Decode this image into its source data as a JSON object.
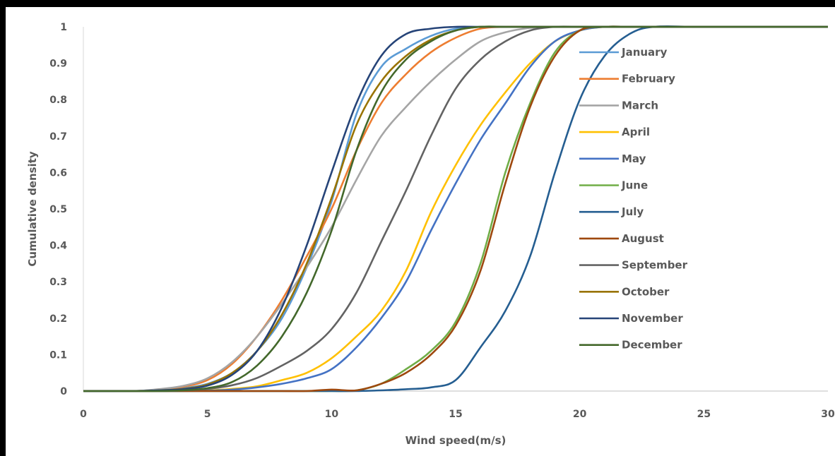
{
  "chart_data": {
    "type": "line",
    "title": "",
    "xlabel": "Wind speed(m/s)",
    "ylabel": "Cumulative density",
    "xlim": [
      0,
      30
    ],
    "ylim": [
      0,
      1
    ],
    "x_ticks": [
      0,
      5,
      10,
      15,
      20,
      25,
      30
    ],
    "y_ticks": [
      0,
      0.1,
      0.2,
      0.3,
      0.4,
      0.5,
      0.6,
      0.7,
      0.8,
      0.9,
      1
    ],
    "y_tick_labels": [
      "0",
      "0.1",
      "0.2",
      "0.3",
      "0.4",
      "0.5",
      "0.6",
      "0.7",
      "0.8",
      "0.9",
      "1"
    ],
    "grid": false,
    "legend_position": "right",
    "x": [
      0,
      2,
      3,
      4,
      5,
      6,
      7,
      8,
      9,
      10,
      11,
      12,
      13,
      14,
      15,
      16,
      17,
      18,
      19,
      20,
      21,
      22,
      23,
      25,
      30
    ],
    "series": [
      {
        "name": "January",
        "color": "#5B9BD5",
        "values": [
          0,
          0,
          0.003,
          0.008,
          0.02,
          0.05,
          0.11,
          0.2,
          0.34,
          0.52,
          0.76,
          0.89,
          0.94,
          0.975,
          0.995,
          1,
          1,
          1,
          1,
          1,
          1,
          1,
          1,
          1,
          1
        ]
      },
      {
        "name": "February",
        "color": "#ED7D31",
        "values": [
          0,
          0,
          0.004,
          0.012,
          0.03,
          0.075,
          0.15,
          0.25,
          0.37,
          0.5,
          0.66,
          0.79,
          0.87,
          0.93,
          0.97,
          0.995,
          1,
          1,
          1,
          1,
          1,
          1,
          1,
          1,
          1
        ]
      },
      {
        "name": "March",
        "color": "#A5A5A5",
        "values": [
          0,
          0,
          0.005,
          0.014,
          0.035,
          0.08,
          0.15,
          0.24,
          0.34,
          0.45,
          0.58,
          0.7,
          0.78,
          0.85,
          0.91,
          0.96,
          0.985,
          0.997,
          1,
          1,
          1,
          1,
          1,
          1,
          1
        ]
      },
      {
        "name": "April",
        "color": "#FFC000",
        "values": [
          0,
          0,
          0,
          0,
          0.002,
          0.006,
          0.013,
          0.03,
          0.05,
          0.09,
          0.15,
          0.22,
          0.33,
          0.49,
          0.62,
          0.73,
          0.82,
          0.9,
          0.96,
          0.99,
          1,
          1,
          1,
          1,
          1
        ]
      },
      {
        "name": "May",
        "color": "#4472C4",
        "values": [
          0,
          0,
          0,
          0,
          0.001,
          0.004,
          0.01,
          0.02,
          0.035,
          0.06,
          0.12,
          0.2,
          0.3,
          0.44,
          0.57,
          0.69,
          0.79,
          0.89,
          0.96,
          0.99,
          1,
          1,
          1,
          1,
          1
        ]
      },
      {
        "name": "June",
        "color": "#70AD47",
        "values": [
          0,
          0,
          0,
          0,
          0,
          0,
          0,
          0,
          0,
          0,
          0.002,
          0.02,
          0.06,
          0.11,
          0.19,
          0.35,
          0.6,
          0.79,
          0.93,
          0.99,
          1,
          1,
          1,
          1,
          1
        ]
      },
      {
        "name": "July",
        "color": "#255E91",
        "values": [
          0,
          0,
          0,
          0,
          0,
          0,
          0,
          0,
          0,
          0,
          0,
          0.002,
          0.005,
          0.01,
          0.03,
          0.12,
          0.22,
          0.37,
          0.6,
          0.8,
          0.92,
          0.98,
          1,
          1,
          1
        ]
      },
      {
        "name": "August",
        "color": "#9E480E",
        "values": [
          0,
          0,
          0,
          0,
          0,
          0,
          0,
          0,
          0,
          0.004,
          0.002,
          0.02,
          0.05,
          0.1,
          0.18,
          0.33,
          0.57,
          0.78,
          0.92,
          0.99,
          1,
          1,
          1,
          1,
          1
        ]
      },
      {
        "name": "September",
        "color": "#636363",
        "values": [
          0,
          0,
          0,
          0.002,
          0.006,
          0.016,
          0.036,
          0.07,
          0.11,
          0.17,
          0.27,
          0.41,
          0.55,
          0.7,
          0.83,
          0.91,
          0.96,
          0.99,
          1,
          1,
          1,
          1,
          1,
          1,
          1
        ]
      },
      {
        "name": "October",
        "color": "#997300",
        "values": [
          0,
          0,
          0.002,
          0.006,
          0.018,
          0.05,
          0.11,
          0.21,
          0.35,
          0.53,
          0.73,
          0.85,
          0.92,
          0.965,
          0.99,
          1,
          1,
          1,
          1,
          1,
          1,
          1,
          1,
          1,
          1
        ]
      },
      {
        "name": "November",
        "color": "#264478",
        "values": [
          0,
          0,
          0.002,
          0.005,
          0.015,
          0.045,
          0.11,
          0.23,
          0.4,
          0.6,
          0.79,
          0.92,
          0.98,
          0.995,
          1,
          1,
          1,
          1,
          1,
          1,
          1,
          1,
          1,
          1,
          1
        ]
      },
      {
        "name": "December",
        "color": "#43682B",
        "values": [
          0,
          0,
          0,
          0.002,
          0.008,
          0.025,
          0.07,
          0.15,
          0.27,
          0.44,
          0.66,
          0.82,
          0.91,
          0.96,
          0.99,
          1,
          1,
          1,
          1,
          1,
          1,
          1,
          1,
          1,
          1
        ]
      }
    ]
  }
}
